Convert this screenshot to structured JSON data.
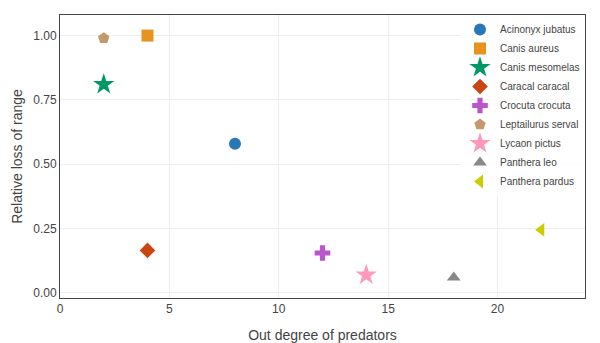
{
  "chart_data": {
    "type": "scatter",
    "xlabel": "Out degree of predators",
    "ylabel": "Relative loss of range",
    "series": [
      {
        "name": "Acinonyx jubatus",
        "color": "#2878b5",
        "marker": "circle",
        "x": [
          8
        ],
        "values": [
          0.58
        ]
      },
      {
        "name": "Canis aureus",
        "color": "#e8931f",
        "marker": "square",
        "x": [
          4
        ],
        "values": [
          1.0
        ]
      },
      {
        "name": "Canis mesomelas",
        "color": "#009966",
        "marker": "star",
        "x": [
          2
        ],
        "values": [
          0.81
        ]
      },
      {
        "name": "Caracal caracal",
        "color": "#cc4411",
        "marker": "diamond",
        "x": [
          4
        ],
        "values": [
          0.165
        ]
      },
      {
        "name": "Crocuta crocuta",
        "color": "#bb55cc",
        "marker": "plus",
        "x": [
          12
        ],
        "values": [
          0.155
        ]
      },
      {
        "name": "Leptailurus serval",
        "color": "#c49a6c",
        "marker": "pentagon",
        "x": [
          2
        ],
        "values": [
          0.99
        ]
      },
      {
        "name": "Lycaon pictus",
        "color": "#ff99bb",
        "marker": "star",
        "x": [
          14
        ],
        "values": [
          0.07
        ]
      },
      {
        "name": "Panthera leo",
        "color": "#888888",
        "marker": "triangle-up",
        "x": [
          18
        ],
        "values": [
          0.06
        ]
      },
      {
        "name": "Panthera pardus",
        "color": "#cccc00",
        "marker": "triangle-left",
        "x": [
          22
        ],
        "values": [
          0.245
        ]
      }
    ],
    "xlim": [
      0,
      24
    ],
    "ylim": [
      -0.02,
      1.08
    ],
    "xticks": [
      0,
      5,
      10,
      15,
      20
    ],
    "yticks": [
      {
        "value": 0,
        "label": "0.00"
      },
      0.25,
      {
        "value": 0.5,
        "label": "0.50"
      },
      0.75,
      {
        "value": 1,
        "label": "1.00"
      }
    ],
    "grid": true,
    "legend": "upper right"
  }
}
